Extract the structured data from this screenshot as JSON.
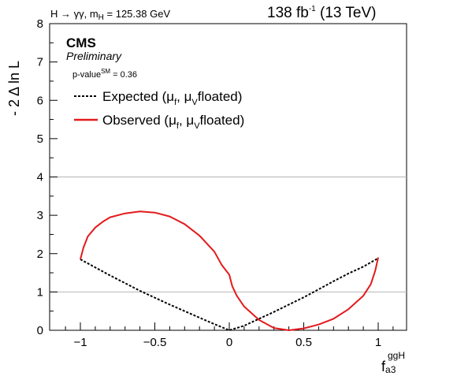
{
  "header": {
    "process_label": "H → γγ, m",
    "process_sub": "H",
    "process_value": " = 125.38 GeV",
    "lumi": "138 fb",
    "lumi_sup": "-1",
    "energy": " (13 TeV)"
  },
  "badge": {
    "experiment": "CMS",
    "status": "Preliminary",
    "pvalue_label": "p-value",
    "pvalue_sup": "SM",
    "pvalue_value": " = 0.36"
  },
  "legend": {
    "expected": {
      "text": "Expected (μ",
      "sub1": "f",
      "mid": ", μ",
      "sub2": "V",
      "tail": "floated)"
    },
    "observed": {
      "text": "Observed (μ",
      "sub1": "f",
      "mid": ", μ",
      "sub2": "V",
      "tail": "floated)"
    }
  },
  "axes": {
    "ylabel": "- 2 Δ ln L",
    "xlabel_main": "f",
    "xlabel_sub": "a3",
    "xlabel_sup": "ggH"
  },
  "chart_data": {
    "type": "line",
    "xlim": [
      -1.2,
      1.2
    ],
    "ylim": [
      0,
      8
    ],
    "x_ticks": [
      -1,
      -0.5,
      0,
      0.5,
      1
    ],
    "x_tick_labels": [
      "−1",
      "−0.5",
      "0",
      "0.5",
      "1"
    ],
    "y_ticks": [
      0,
      1,
      2,
      3,
      4,
      5,
      6,
      7,
      8
    ],
    "y_tick_labels": [
      "0",
      "1",
      "2",
      "3",
      "4",
      "5",
      "6",
      "7",
      "8"
    ],
    "reference_lines": [
      1,
      4
    ],
    "grid": false,
    "legend_position": "top-left",
    "series": [
      {
        "name": "Expected (μf, μV floated)",
        "style": "dashed",
        "color": "#000000",
        "x": [
          -1.0,
          -0.8,
          -0.6,
          -0.4,
          -0.2,
          -0.1,
          0.0,
          0.1,
          0.2,
          0.3,
          0.4,
          0.5,
          0.6,
          0.7,
          0.8,
          0.9,
          1.0
        ],
        "y": [
          1.85,
          1.43,
          1.03,
          0.67,
          0.33,
          0.16,
          0.0,
          0.12,
          0.3,
          0.48,
          0.67,
          0.86,
          1.07,
          1.28,
          1.48,
          1.66,
          1.88
        ]
      },
      {
        "name": "Observed (μf, μV floated)",
        "style": "solid",
        "color": "#e31a1c",
        "x": [
          -1.0,
          -0.98,
          -0.95,
          -0.9,
          -0.85,
          -0.8,
          -0.7,
          -0.6,
          -0.5,
          -0.4,
          -0.3,
          -0.2,
          -0.1,
          -0.05,
          0.0,
          0.02,
          0.05,
          0.1,
          0.2,
          0.3,
          0.4,
          0.5,
          0.6,
          0.7,
          0.8,
          0.9,
          0.95,
          0.98,
          1.0
        ],
        "y": [
          1.85,
          2.15,
          2.45,
          2.68,
          2.83,
          2.95,
          3.05,
          3.1,
          3.07,
          2.97,
          2.77,
          2.47,
          2.05,
          1.7,
          1.45,
          1.15,
          0.9,
          0.62,
          0.27,
          0.06,
          0.0,
          0.05,
          0.15,
          0.3,
          0.55,
          0.9,
          1.2,
          1.55,
          1.9
        ]
      }
    ]
  }
}
